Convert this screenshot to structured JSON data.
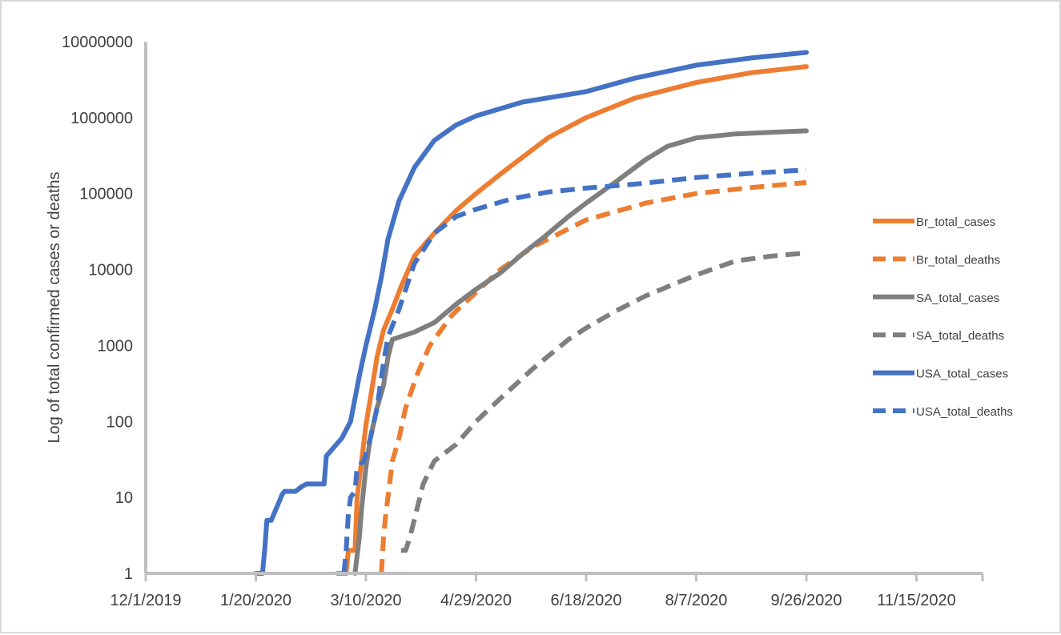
{
  "chart_data": {
    "type": "line",
    "title": "",
    "xlabel": "",
    "ylabel": "Log of total confirmed cases or deaths",
    "y_scale": "log",
    "ylim": [
      1,
      10000000
    ],
    "xlim": [
      "2019-12-01",
      "2020-12-15"
    ],
    "grid": false,
    "legend_position": "right",
    "x_ticks": [
      {
        "date": "2019-12-01",
        "label": "12/1/2019"
      },
      {
        "date": "2020-01-20",
        "label": "1/20/2020"
      },
      {
        "date": "2020-03-10",
        "label": "3/10/2020"
      },
      {
        "date": "2020-04-29",
        "label": "4/29/2020"
      },
      {
        "date": "2020-06-18",
        "label": "6/18/2020"
      },
      {
        "date": "2020-08-07",
        "label": "8/7/2020"
      },
      {
        "date": "2020-09-26",
        "label": "9/26/2020"
      },
      {
        "date": "2020-11-15",
        "label": "11/15/2020"
      },
      {
        "date": "2020-12-15",
        "label": ""
      }
    ],
    "y_ticks": [
      {
        "value": 1,
        "label": "1"
      },
      {
        "value": 10,
        "label": "10"
      },
      {
        "value": 100,
        "label": "100"
      },
      {
        "value": 1000,
        "label": "1000"
      },
      {
        "value": 10000,
        "label": "10000"
      },
      {
        "value": 100000,
        "label": "100000"
      },
      {
        "value": 1000000,
        "label": "1000000"
      },
      {
        "value": 10000000,
        "label": "10000000"
      }
    ],
    "series": [
      {
        "name": "Br_total_cases",
        "color": "#ED7D31",
        "dash": false,
        "points": [
          [
            "2020-02-26",
            1
          ],
          [
            "2020-03-01",
            1
          ],
          [
            "2020-03-02",
            2
          ],
          [
            "2020-03-05",
            2
          ],
          [
            "2020-03-06",
            10
          ],
          [
            "2020-03-08",
            30
          ],
          [
            "2020-03-10",
            90
          ],
          [
            "2020-03-12",
            200
          ],
          [
            "2020-03-15",
            700
          ],
          [
            "2020-03-18",
            1600
          ],
          [
            "2020-03-22",
            3000
          ],
          [
            "2020-03-26",
            6000
          ],
          [
            "2020-04-01",
            15000
          ],
          [
            "2020-04-10",
            30000
          ],
          [
            "2020-04-20",
            60000
          ],
          [
            "2020-04-29",
            100000
          ],
          [
            "2020-05-10",
            180000
          ],
          [
            "2020-05-20",
            300000
          ],
          [
            "2020-06-01",
            550000
          ],
          [
            "2020-06-18",
            1000000
          ],
          [
            "2020-07-10",
            1800000
          ],
          [
            "2020-08-07",
            2900000
          ],
          [
            "2020-09-01",
            3900000
          ],
          [
            "2020-09-26",
            4700000
          ]
        ]
      },
      {
        "name": "Br_total_deaths",
        "color": "#ED7D31",
        "dash": true,
        "points": [
          [
            "2020-03-17",
            1
          ],
          [
            "2020-03-18",
            3
          ],
          [
            "2020-03-19",
            6
          ],
          [
            "2020-03-20",
            10
          ],
          [
            "2020-03-22",
            30
          ],
          [
            "2020-03-25",
            60
          ],
          [
            "2020-03-28",
            150
          ],
          [
            "2020-04-02",
            400
          ],
          [
            "2020-04-08",
            1000
          ],
          [
            "2020-04-18",
            2500
          ],
          [
            "2020-04-29",
            5000
          ],
          [
            "2020-05-10",
            10000
          ],
          [
            "2020-05-25",
            20000
          ],
          [
            "2020-06-18",
            45000
          ],
          [
            "2020-07-15",
            75000
          ],
          [
            "2020-08-07",
            100000
          ],
          [
            "2020-09-01",
            120000
          ],
          [
            "2020-09-26",
            140000
          ]
        ]
      },
      {
        "name": "SA_total_cases",
        "color": "#7F7F7F",
        "dash": false,
        "points": [
          [
            "2020-03-05",
            1
          ],
          [
            "2020-03-07",
            3
          ],
          [
            "2020-03-08",
            7
          ],
          [
            "2020-03-10",
            25
          ],
          [
            "2020-03-12",
            60
          ],
          [
            "2020-03-15",
            150
          ],
          [
            "2020-03-18",
            300
          ],
          [
            "2020-03-20",
            700
          ],
          [
            "2020-03-22",
            1200
          ],
          [
            "2020-04-01",
            1500
          ],
          [
            "2020-04-10",
            2000
          ],
          [
            "2020-04-20",
            3500
          ],
          [
            "2020-04-29",
            5500
          ],
          [
            "2020-05-10",
            9000
          ],
          [
            "2020-05-20",
            16000
          ],
          [
            "2020-05-30",
            27000
          ],
          [
            "2020-06-10",
            50000
          ],
          [
            "2020-06-18",
            75000
          ],
          [
            "2020-07-01",
            140000
          ],
          [
            "2020-07-15",
            280000
          ],
          [
            "2020-07-25",
            420000
          ],
          [
            "2020-08-07",
            540000
          ],
          [
            "2020-08-25",
            610000
          ],
          [
            "2020-09-10",
            640000
          ],
          [
            "2020-09-26",
            670000
          ]
        ]
      },
      {
        "name": "SA_total_deaths",
        "color": "#7F7F7F",
        "dash": true,
        "points": [
          [
            "2020-03-26",
            2
          ],
          [
            "2020-03-28",
            2
          ],
          [
            "2020-03-30",
            3
          ],
          [
            "2020-04-05",
            15
          ],
          [
            "2020-04-10",
            30
          ],
          [
            "2020-04-20",
            50
          ],
          [
            "2020-04-29",
            100
          ],
          [
            "2020-05-10",
            200
          ],
          [
            "2020-05-25",
            500
          ],
          [
            "2020-06-10",
            1200
          ],
          [
            "2020-06-18",
            1700
          ],
          [
            "2020-07-01",
            2800
          ],
          [
            "2020-07-15",
            4500
          ],
          [
            "2020-08-07",
            8500
          ],
          [
            "2020-08-25",
            13000
          ],
          [
            "2020-09-10",
            15000
          ],
          [
            "2020-09-26",
            16500
          ]
        ]
      },
      {
        "name": "USA_total_cases",
        "color": "#4472C4",
        "dash": false,
        "points": [
          [
            "2020-01-20",
            1
          ],
          [
            "2020-01-23",
            1
          ],
          [
            "2020-01-24",
            2
          ],
          [
            "2020-01-25",
            5
          ],
          [
            "2020-01-27",
            5
          ],
          [
            "2020-01-30",
            8
          ],
          [
            "2020-02-01",
            11
          ],
          [
            "2020-02-02",
            12
          ],
          [
            "2020-02-07",
            12
          ],
          [
            "2020-02-10",
            14
          ],
          [
            "2020-02-12",
            15
          ],
          [
            "2020-02-20",
            15
          ],
          [
            "2020-02-21",
            35
          ],
          [
            "2020-02-28",
            60
          ],
          [
            "2020-03-03",
            100
          ],
          [
            "2020-03-05",
            200
          ],
          [
            "2020-03-07",
            400
          ],
          [
            "2020-03-10",
            1000
          ],
          [
            "2020-03-14",
            3000
          ],
          [
            "2020-03-17",
            8000
          ],
          [
            "2020-03-20",
            25000
          ],
          [
            "2020-03-25",
            80000
          ],
          [
            "2020-04-01",
            220000
          ],
          [
            "2020-04-10",
            500000
          ],
          [
            "2020-04-20",
            800000
          ],
          [
            "2020-04-29",
            1050000
          ],
          [
            "2020-05-20",
            1600000
          ],
          [
            "2020-06-18",
            2200000
          ],
          [
            "2020-07-10",
            3300000
          ],
          [
            "2020-08-07",
            4900000
          ],
          [
            "2020-09-01",
            6100000
          ],
          [
            "2020-09-26",
            7200000
          ]
        ]
      },
      {
        "name": "USA_total_deaths",
        "color": "#4472C4",
        "dash": true,
        "points": [
          [
            "2020-02-29",
            1
          ],
          [
            "2020-03-01",
            2
          ],
          [
            "2020-03-02",
            6
          ],
          [
            "2020-03-03",
            10
          ],
          [
            "2020-03-05",
            12
          ],
          [
            "2020-03-06",
            25
          ],
          [
            "2020-03-09",
            30
          ],
          [
            "2020-03-12",
            60
          ],
          [
            "2020-03-15",
            150
          ],
          [
            "2020-03-18",
            600
          ],
          [
            "2020-03-20",
            1300
          ],
          [
            "2020-03-25",
            3000
          ],
          [
            "2020-04-01",
            12000
          ],
          [
            "2020-04-10",
            30000
          ],
          [
            "2020-04-20",
            50000
          ],
          [
            "2020-04-29",
            62000
          ],
          [
            "2020-05-15",
            85000
          ],
          [
            "2020-06-01",
            105000
          ],
          [
            "2020-06-18",
            118000
          ],
          [
            "2020-07-10",
            133000
          ],
          [
            "2020-08-07",
            162000
          ],
          [
            "2020-09-01",
            185000
          ],
          [
            "2020-09-26",
            205000
          ]
        ]
      }
    ]
  }
}
